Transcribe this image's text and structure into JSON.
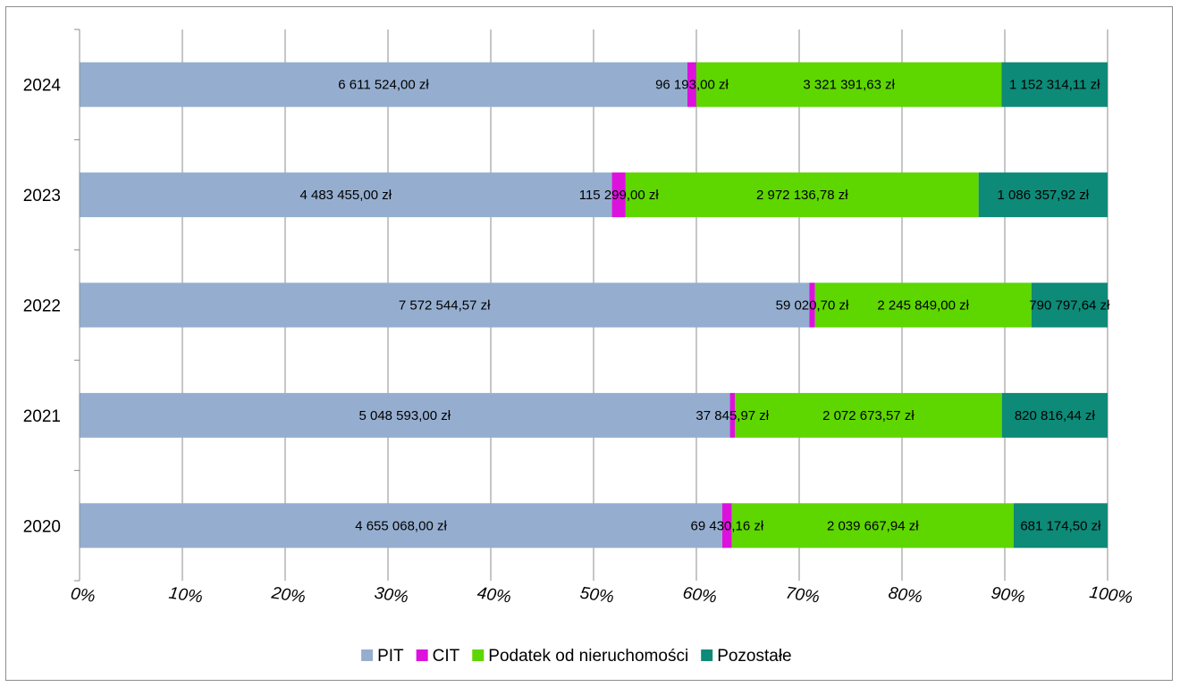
{
  "chart_data": {
    "type": "bar",
    "orientation": "horizontal",
    "stacking": "percent",
    "categories": [
      "2024",
      "2023",
      "2022",
      "2021",
      "2020"
    ],
    "series": [
      {
        "name": "PIT",
        "color": "#95aed0",
        "values": [
          6611524.0,
          4483455.0,
          7572544.57,
          5048593.0,
          4655068.0
        ],
        "labels": [
          "6 611 524,00 zł",
          "4 483 455,00 zł",
          "7 572 544,57 zł",
          "5 048 593,00 zł",
          "4 655 068,00 zł"
        ]
      },
      {
        "name": "CIT",
        "color": "#dd11dd",
        "values": [
          96193.0,
          115299.0,
          59020.7,
          37845.97,
          69430.16
        ],
        "labels": [
          "96 193,00 zł",
          "115 299,00 zł",
          "59 020,70 zł",
          "37 845,97 zł",
          "69 430,16 zł"
        ]
      },
      {
        "name": "Podatek od nieruchomości",
        "color": "#5ed600",
        "values": [
          3321391.63,
          2972136.78,
          2245849.0,
          2072673.57,
          2039667.94
        ],
        "labels": [
          "3 321 391,63 zł",
          "2 972 136,78 zł",
          "2 245 849,00 zł",
          "2 072 673,57 zł",
          "2 039 667,94 zł"
        ]
      },
      {
        "name": "Pozostałe",
        "color": "#0d8a78",
        "values": [
          1152314.11,
          1086357.92,
          790797.64,
          820816.44,
          681174.5
        ],
        "labels": [
          "1 152 314,11 zł",
          "1 086 357,92 zł",
          "790 797,64 zł",
          "820 816,44 zł",
          "681 174,50 zł"
        ]
      }
    ],
    "x_ticks": [
      "0%",
      "10%",
      "20%",
      "30%",
      "40%",
      "50%",
      "60%",
      "70%",
      "80%",
      "90%",
      "100%"
    ],
    "xlim": [
      0,
      100
    ],
    "grid": true,
    "legend_position": "bottom"
  }
}
